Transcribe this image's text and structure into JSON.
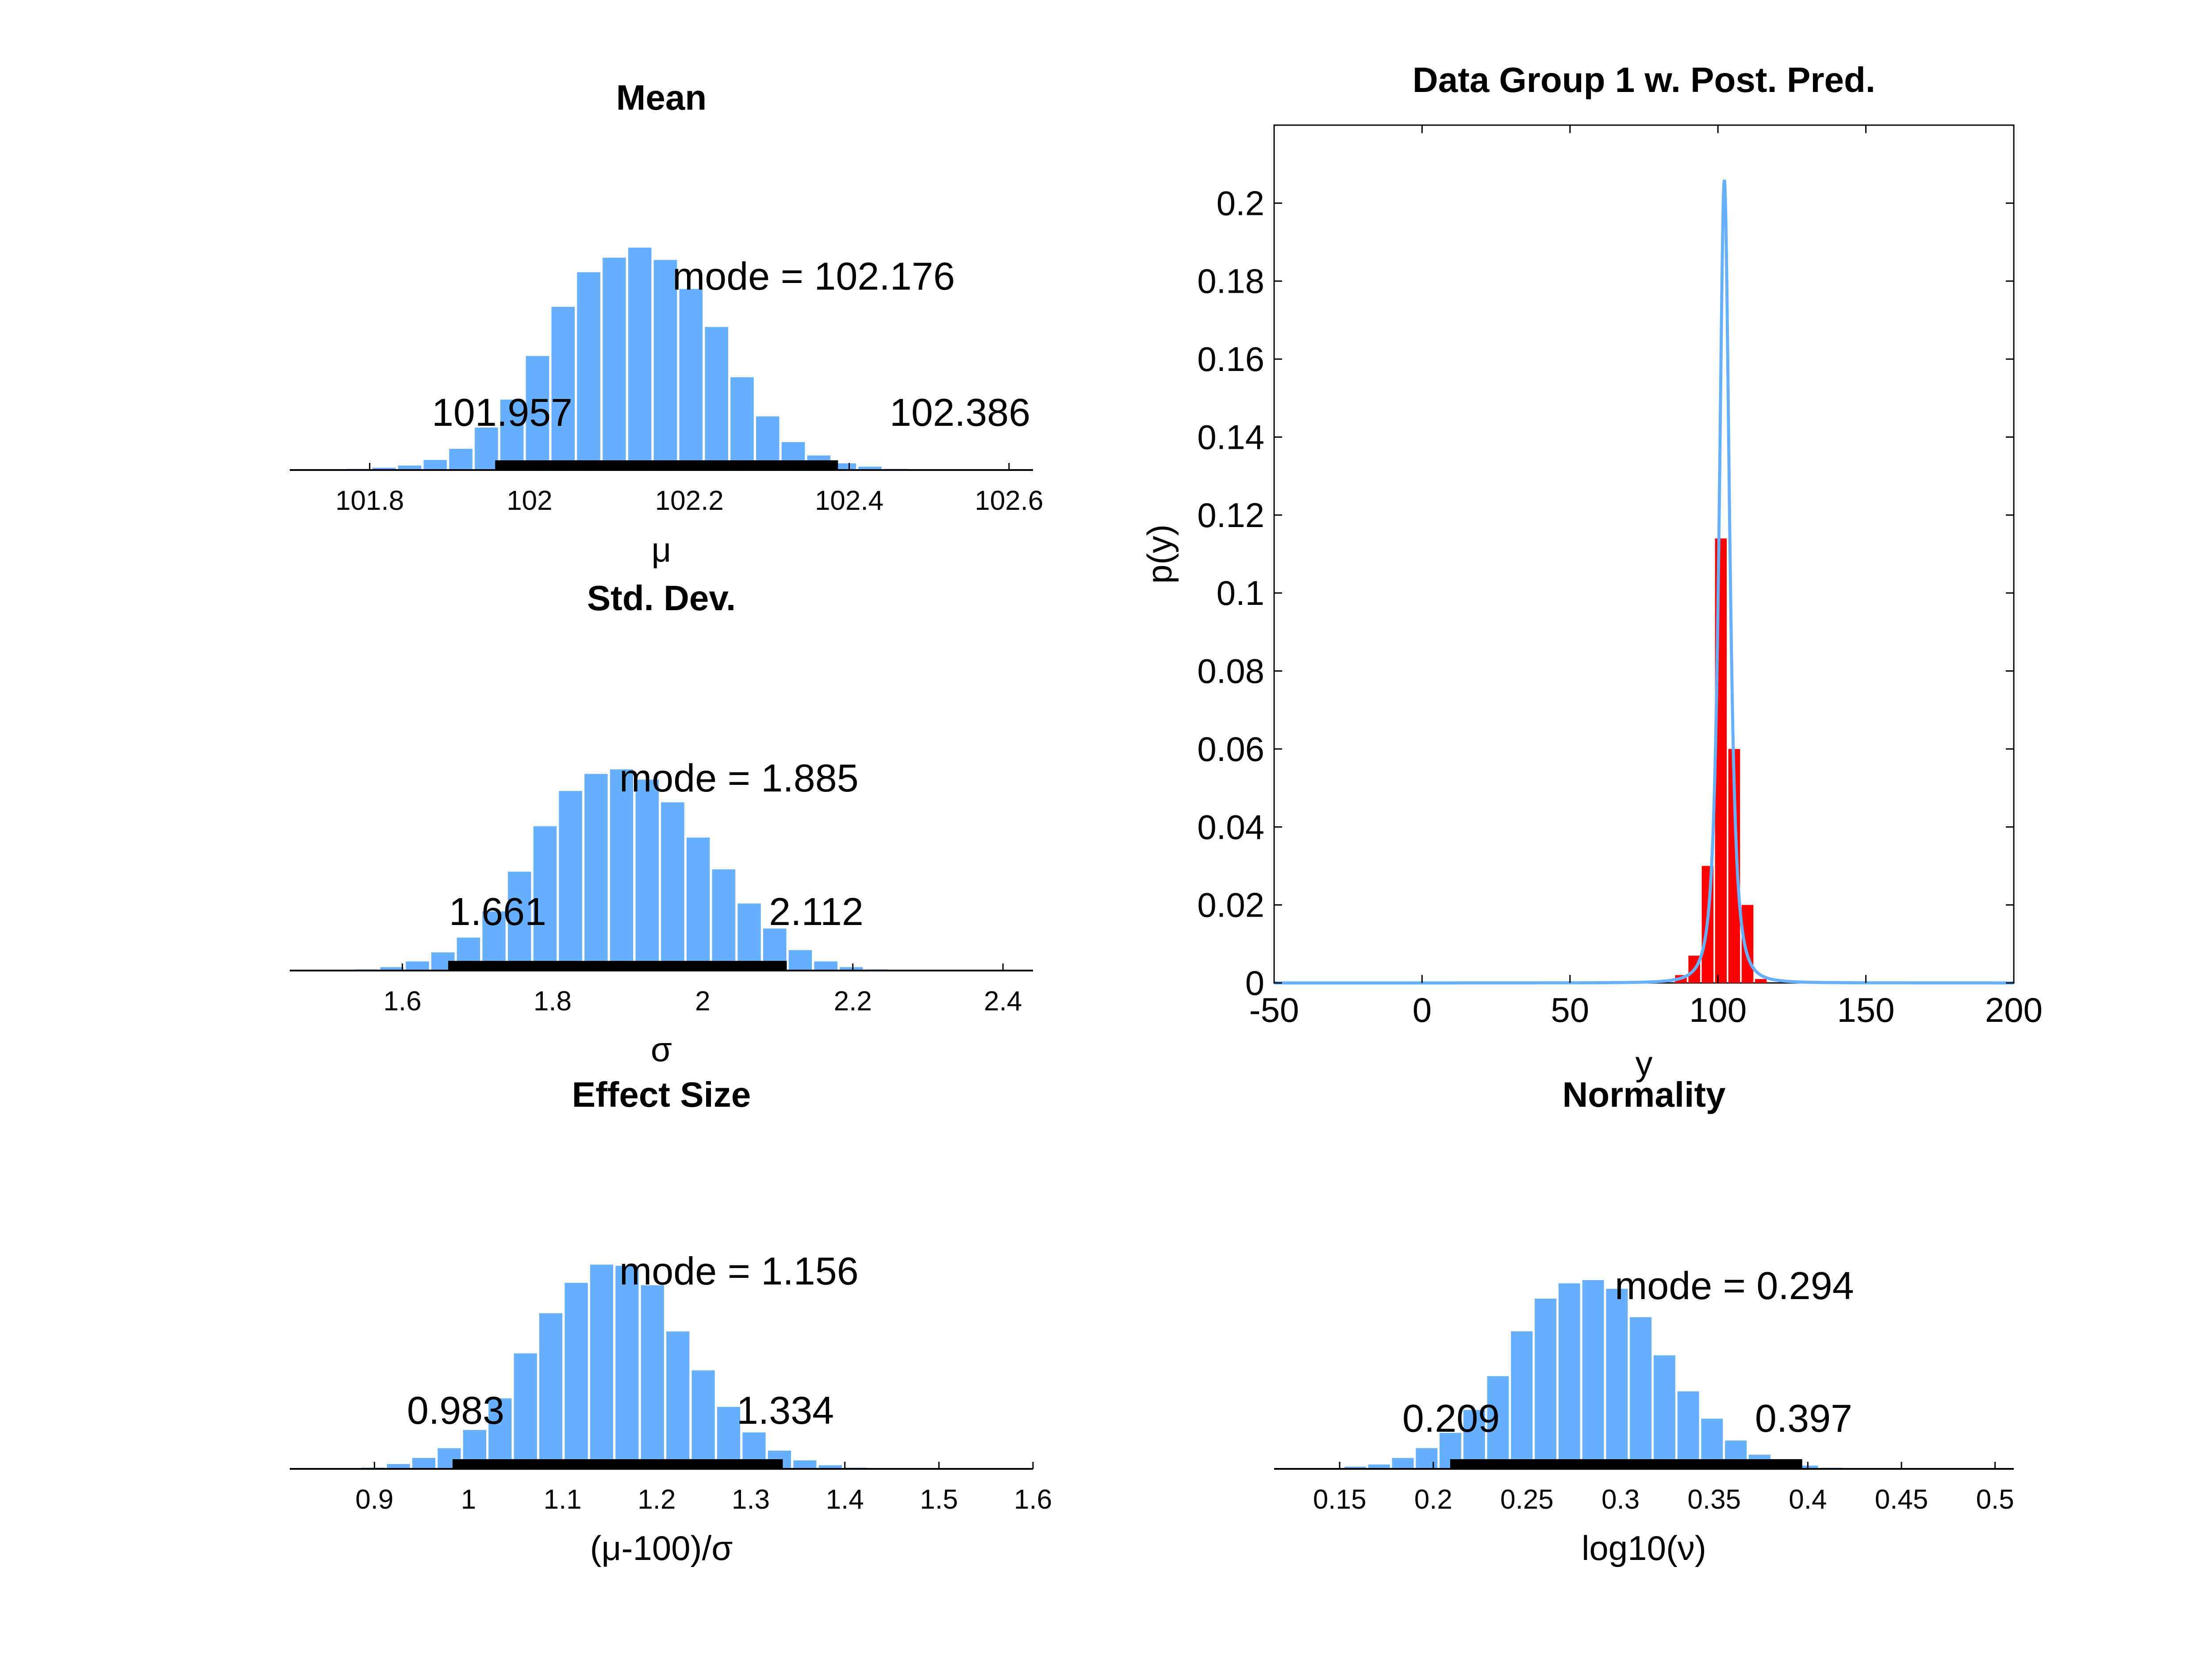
{
  "colors": {
    "bar": "#66b0ff",
    "hdi": "#000000",
    "data_hist": "#ff0000",
    "pred_curve": "#66b0ff"
  },
  "chart_data": [
    {
      "id": "mean",
      "type": "bar",
      "title": "Mean",
      "xlabel": "μ",
      "xlim": [
        101.7,
        102.63
      ],
      "xticks": [
        101.8,
        102,
        102.2,
        102.4,
        102.6
      ],
      "xtick_labels": [
        "101.8",
        "102",
        "102.2",
        "102.4",
        "102.6"
      ],
      "bin_start": 101.77,
      "bin_width": 0.032,
      "values": [
        1,
        2,
        4,
        9,
        19,
        38,
        63,
        102,
        146,
        177,
        190,
        199,
        188,
        162,
        128,
        83,
        48,
        25,
        13,
        6,
        3,
        1
      ],
      "mode_label": "mode = 102.176",
      "hdi": [
        101.957,
        102.386
      ],
      "hdi_low_label": "101.957",
      "hdi_high_label": "102.386"
    },
    {
      "id": "sd",
      "type": "bar",
      "title": "Std. Dev.",
      "xlabel": "σ",
      "xlim": [
        1.45,
        2.44
      ],
      "xticks": [
        1.6,
        1.8,
        2,
        2.2,
        2.4
      ],
      "xtick_labels": [
        "1.6",
        "1.8",
        "2",
        "2.2",
        "2.4"
      ],
      "bin_start": 1.535,
      "bin_width": 0.034,
      "values": [
        1,
        3,
        8,
        16,
        29,
        52,
        87,
        127,
        158,
        173,
        177,
        168,
        148,
        117,
        89,
        59,
        37,
        18,
        8,
        3,
        1,
        0
      ],
      "mode_label": "mode = 1.885",
      "hdi": [
        1.661,
        2.112
      ],
      "hdi_low_label": "1.661",
      "hdi_high_label": "2.112"
    },
    {
      "id": "effect",
      "type": "bar",
      "title": "Effect Size",
      "xlabel": "(μ-100)/σ",
      "xlim": [
        0.81,
        1.6
      ],
      "xticks": [
        0.9,
        1,
        1.1,
        1.2,
        1.3,
        1.4,
        1.5,
        1.6
      ],
      "xtick_labels": [
        "0.9",
        "1",
        "1.1",
        "1.2",
        "1.3",
        "1.4",
        "1.5",
        "1.6"
      ],
      "bin_start": 0.885,
      "bin_width": 0.027,
      "values": [
        1,
        4,
        9,
        17,
        32,
        58,
        95,
        128,
        153,
        168,
        167,
        151,
        113,
        81,
        51,
        30,
        15,
        7,
        3,
        1
      ],
      "mode_label": "mode = 1.156",
      "hdi": [
        0.983,
        1.334
      ],
      "hdi_low_label": "0.983",
      "hdi_high_label": "1.334"
    },
    {
      "id": "normality",
      "type": "bar",
      "title": "Normality",
      "xlabel": "log10(ν)",
      "xlim": [
        0.115,
        0.51
      ],
      "xticks": [
        0.15,
        0.2,
        0.25,
        0.3,
        0.35,
        0.4,
        0.45,
        0.5
      ],
      "xtick_labels": [
        "0.15",
        "0.2",
        "0.25",
        "0.3",
        "0.35",
        "0.4",
        "0.45",
        "0.5"
      ],
      "bin_start": 0.152,
      "bin_width": 0.0127,
      "values": [
        2,
        4,
        10,
        19,
        33,
        54,
        85,
        126,
        156,
        170,
        173,
        165,
        139,
        104,
        71,
        46,
        26,
        13,
        7,
        3,
        1
      ],
      "mode_label": "mode = 0.294",
      "hdi": [
        0.209,
        0.397
      ],
      "hdi_low_label": "0.209",
      "hdi_high_label": "0.397"
    },
    {
      "id": "ppc",
      "type": "bar",
      "title": "Data Group 1 w. Post. Pred.",
      "xlabel": "y",
      "ylabel": "p(y)",
      "xlim": [
        -50,
        200
      ],
      "ylim": [
        0,
        0.22
      ],
      "xticks": [
        -50,
        0,
        50,
        100,
        150,
        200
      ],
      "xtick_labels": [
        "-50",
        "0",
        "50",
        "100",
        "150",
        "200"
      ],
      "yticks": [
        0,
        0.02,
        0.04,
        0.06,
        0.08,
        0.1,
        0.12,
        0.14,
        0.16,
        0.18,
        0.2
      ],
      "ytick_labels": [
        "0",
        "0.02",
        "0.04",
        "0.06",
        "0.08",
        "0.1",
        "0.12",
        "0.14",
        "0.16",
        "0.18",
        "0.2"
      ],
      "data_hist": {
        "bin_width": 4.5,
        "bin_centers": [
          87.5,
          92,
          96.5,
          101,
          105.5,
          110,
          114.5
        ],
        "values": [
          0.002,
          0.007,
          0.03,
          0.114,
          0.06,
          0.02,
          0.001
        ]
      },
      "posterior_predictive": {
        "mu": 102.176,
        "sigma": 1.885,
        "log10_nu": 0.294,
        "peak": 0.206
      }
    }
  ]
}
